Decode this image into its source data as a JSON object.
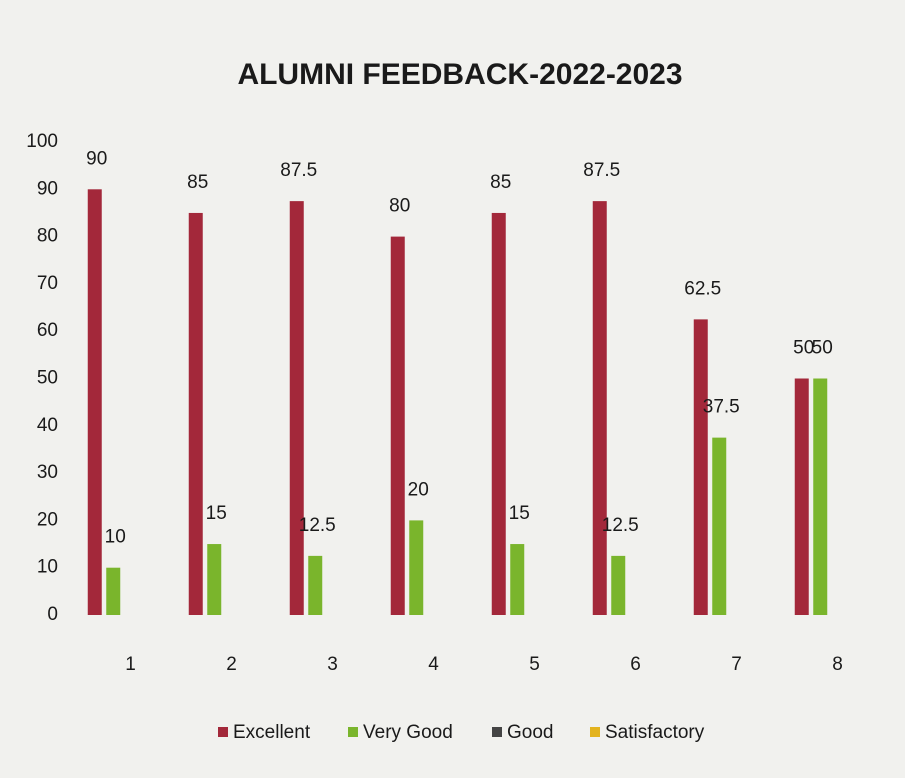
{
  "chart_data": {
    "type": "bar",
    "title": "ALUMNI FEEDBACK-2022-2023",
    "categories": [
      "1",
      "2",
      "3",
      "4",
      "5",
      "6",
      "7",
      "8"
    ],
    "series": [
      {
        "name": "Excellent",
        "color": "#a3283a",
        "values": [
          90,
          85,
          87.5,
          80,
          85,
          87.5,
          62.5,
          50
        ]
      },
      {
        "name": "Very Good",
        "color": "#7ab52c",
        "values": [
          10,
          15,
          12.5,
          20,
          15,
          12.5,
          37.5,
          50
        ]
      },
      {
        "name": "Good",
        "color": "#444444",
        "values": [
          null,
          null,
          null,
          null,
          null,
          null,
          null,
          null
        ]
      },
      {
        "name": "Satisfactory",
        "color": "#e3b31e",
        "values": [
          null,
          null,
          null,
          null,
          null,
          null,
          null,
          null
        ]
      }
    ],
    "ylim": [
      0,
      100
    ],
    "yticks": [
      0,
      10,
      20,
      30,
      40,
      50,
      60,
      70,
      80,
      90,
      100
    ],
    "grid": false,
    "legend": "bottom"
  }
}
